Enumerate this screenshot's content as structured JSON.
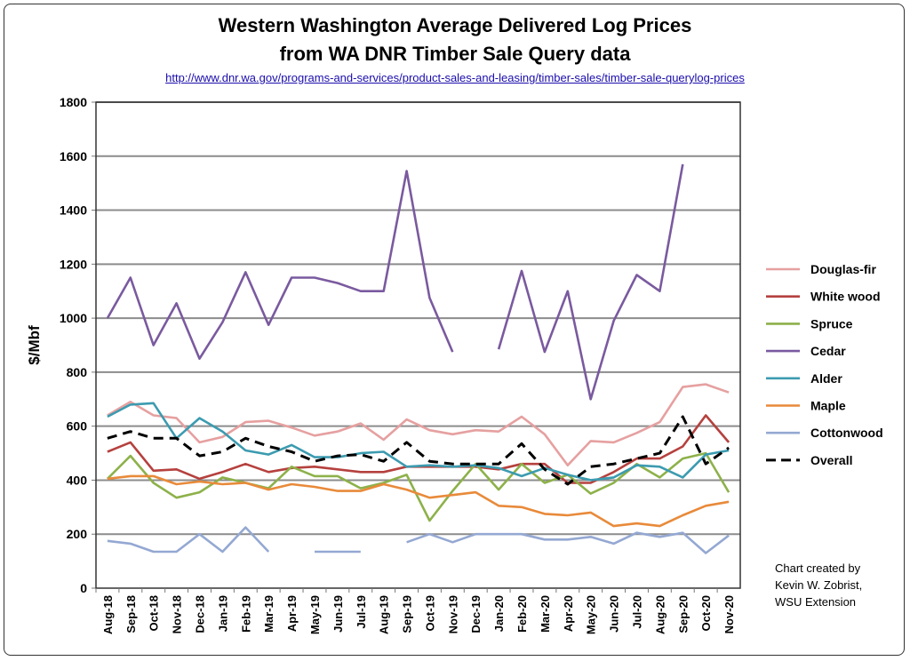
{
  "chart_data": {
    "type": "line",
    "title": "Western Washington Average Delivered Log Prices",
    "subtitle": "from WA DNR Timber Sale Query data",
    "url": "http://www.dnr.wa.gov/programs-and-services/product-sales-and-leasing/timber-sales/timber-sale-querylog-prices",
    "ylabel": "$/Mbf",
    "xlabel": "",
    "ylim": [
      0,
      1800
    ],
    "yticks": [
      0,
      200,
      400,
      600,
      800,
      1000,
      1200,
      1400,
      1600,
      1800
    ],
    "grid": true,
    "legend_position": "right",
    "categories": [
      "Aug-18",
      "Sep-18",
      "Oct-18",
      "Nov-18",
      "Dec-18",
      "Jan-19",
      "Feb-19",
      "Mar-19",
      "Apr-19",
      "May-19",
      "Jun-19",
      "Jul-19",
      "Aug-19",
      "Sep-19",
      "Oct-19",
      "Nov-19",
      "Dec-19",
      "Jan-20",
      "Feb-20",
      "Mar-20",
      "Apr-20",
      "May-20",
      "Jun-20",
      "Jul-20",
      "Aug-20",
      "Sep-20",
      "Oct-20",
      "Nov-20"
    ],
    "series": [
      {
        "name": "Douglas-fir",
        "color": "#e6a0a0",
        "dashed": false,
        "values": [
          640,
          690,
          640,
          630,
          540,
          560,
          615,
          620,
          595,
          565,
          580,
          610,
          550,
          625,
          585,
          570,
          585,
          580,
          635,
          570,
          455,
          545,
          540,
          575,
          615,
          745,
          755,
          725
        ]
      },
      {
        "name": "White wood",
        "color": "#b5413e",
        "dashed": false,
        "values": [
          505,
          540,
          435,
          440,
          405,
          430,
          460,
          430,
          445,
          450,
          440,
          430,
          430,
          450,
          450,
          450,
          450,
          440,
          460,
          460,
          390,
          390,
          430,
          480,
          480,
          525,
          640,
          540
        ]
      },
      {
        "name": "Spruce",
        "color": "#8db14a",
        "dashed": false,
        "values": [
          405,
          490,
          390,
          335,
          355,
          410,
          390,
          370,
          450,
          415,
          415,
          370,
          390,
          420,
          250,
          360,
          460,
          365,
          460,
          390,
          420,
          350,
          390,
          460,
          410,
          480,
          500,
          355
        ]
      },
      {
        "name": "Cedar",
        "color": "#7a5a9f",
        "dashed": false,
        "values": [
          1000,
          1150,
          900,
          1055,
          850,
          985,
          1170,
          975,
          1150,
          1150,
          1130,
          1100,
          1100,
          1545,
          1075,
          875,
          null,
          885,
          1175,
          875,
          1100,
          700,
          990,
          1160,
          1100,
          1570,
          null,
          null
        ]
      },
      {
        "name": "Alder",
        "color": "#3c9bb0",
        "dashed": false,
        "values": [
          635,
          680,
          685,
          555,
          630,
          580,
          510,
          495,
          530,
          485,
          485,
          500,
          505,
          450,
          455,
          450,
          455,
          445,
          415,
          445,
          420,
          400,
          410,
          455,
          450,
          410,
          495,
          510
        ]
      },
      {
        "name": "Maple",
        "color": "#e88a3a",
        "dashed": false,
        "values": [
          405,
          415,
          415,
          385,
          395,
          385,
          390,
          365,
          385,
          375,
          360,
          360,
          385,
          365,
          335,
          345,
          355,
          305,
          300,
          275,
          270,
          280,
          230,
          240,
          230,
          270,
          305,
          320
        ]
      },
      {
        "name": "Cottonwood",
        "color": "#94a8d2",
        "dashed": false,
        "values": [
          175,
          165,
          135,
          135,
          200,
          135,
          225,
          135,
          null,
          135,
          135,
          135,
          null,
          170,
          200,
          170,
          200,
          200,
          200,
          180,
          180,
          190,
          165,
          205,
          190,
          205,
          130,
          195
        ]
      },
      {
        "name": "Overall",
        "color": "#000000",
        "dashed": true,
        "values": [
          555,
          580,
          555,
          555,
          490,
          505,
          555,
          525,
          505,
          470,
          490,
          495,
          470,
          540,
          470,
          460,
          460,
          460,
          535,
          440,
          385,
          450,
          460,
          480,
          500,
          635,
          460,
          520
        ]
      }
    ]
  },
  "credit": [
    "Chart created by",
    "Kevin W. Zobrist,",
    "WSU Extension"
  ]
}
